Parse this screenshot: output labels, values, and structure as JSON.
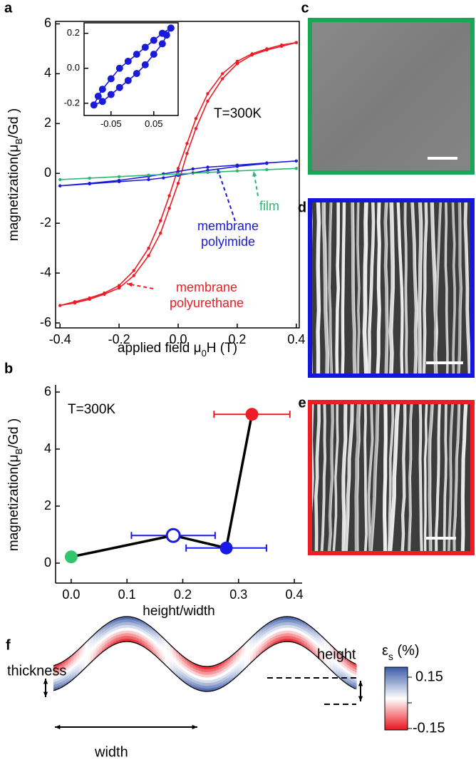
{
  "chart_data": [
    {
      "type": "line",
      "panel_label": "a",
      "xlabel": [
        {
          "text": "applied field μ"
        },
        {
          "text": "0",
          "sub": true
        },
        {
          "text": "H (T)"
        }
      ],
      "ylabel": [
        {
          "text": "magnetization(μ"
        },
        {
          "text": "B",
          "sub": true
        },
        {
          "text": "/Gd )"
        }
      ],
      "xlim": [
        -0.415,
        0.41
      ],
      "ylim": [
        -6.2,
        6.1
      ],
      "xticks": [
        -0.4,
        -0.2,
        {
          "value": 0,
          "label": "0.0"
        },
        0.2,
        0.4
      ],
      "yticks": [
        -6,
        -4,
        -2,
        0,
        2,
        4,
        6
      ],
      "annotations": [
        "T=300K"
      ],
      "series": [
        {
          "name": "membrane polyurethane",
          "color": "#ee1c24",
          "x": [
            0.4,
            0.35,
            0.3,
            0.25,
            0.2,
            0.15,
            0.1,
            0.06,
            0.03,
            0,
            -0.03,
            -0.06,
            -0.1,
            -0.15,
            -0.2,
            -0.25,
            -0.3,
            -0.35,
            -0.4,
            -0.35,
            -0.3,
            -0.25,
            -0.2,
            -0.15,
            -0.1,
            -0.06,
            -0.03,
            0,
            0.03,
            0.06,
            0.1,
            0.15,
            0.2,
            0.25,
            0.3,
            0.35,
            0.4
          ],
          "values": [
            5.25,
            5.15,
            5.0,
            4.8,
            4.5,
            4.0,
            3.2,
            2.2,
            1.2,
            0.2,
            -0.9,
            -1.9,
            -3.0,
            -3.9,
            -4.5,
            -4.8,
            -5.0,
            -5.15,
            -5.3,
            -5.2,
            -5.05,
            -4.85,
            -4.6,
            -4.1,
            -3.3,
            -2.4,
            -1.4,
            -0.4,
            0.8,
            1.8,
            2.9,
            3.8,
            4.4,
            4.75,
            4.95,
            5.1,
            5.25
          ]
        },
        {
          "name": "membrane polyimide",
          "color": "#1a1adb",
          "x": [
            0.4,
            0.3,
            0.2,
            0.1,
            0.05,
            0,
            -0.05,
            -0.1,
            -0.2,
            -0.3,
            -0.4,
            -0.3,
            -0.2,
            -0.1,
            -0.05,
            0,
            0.05,
            0.1,
            0.2,
            0.3
          ],
          "values": [
            0.5,
            0.42,
            0.33,
            0.25,
            0.18,
            0.08,
            -0.02,
            -0.12,
            -0.28,
            -0.4,
            -0.5,
            -0.42,
            -0.33,
            -0.25,
            -0.18,
            -0.08,
            0.02,
            0.12,
            0.28,
            0.4
          ]
        },
        {
          "name": "film",
          "color": "#2fb673",
          "x": [
            -0.4,
            -0.3,
            -0.2,
            -0.1,
            0,
            0.1,
            0.2,
            0.3,
            0.4
          ],
          "values": [
            -0.25,
            -0.19,
            -0.13,
            -0.07,
            -0.02,
            0.04,
            0.1,
            0.15,
            0.2
          ]
        }
      ]
    },
    {
      "type": "line",
      "inset": true,
      "xlim": [
        -0.113,
        0.107
      ],
      "ylim": [
        -0.27,
        0.26
      ],
      "xticks": [
        -0.05,
        0.05
      ],
      "yticks": [
        -0.2,
        {
          "value": 0,
          "label": "0.0"
        },
        0.2
      ],
      "series": [
        {
          "color": "#1a1adb",
          "x": [
            0.09,
            0.07,
            0.05,
            0.03,
            0.01,
            -0.01,
            -0.03,
            -0.05,
            -0.07,
            -0.08,
            -0.09,
            -0.07,
            -0.05,
            -0.03,
            -0.01,
            0.01,
            0.03,
            0.05,
            0.07,
            0.08,
            0.09
          ],
          "values": [
            0.23,
            0.2,
            0.16,
            0.12,
            0.08,
            0.04,
            0.0,
            -0.06,
            -0.12,
            -0.16,
            -0.21,
            -0.19,
            -0.15,
            -0.11,
            -0.07,
            -0.03,
            0.02,
            0.08,
            0.14,
            0.19,
            0.23
          ]
        }
      ]
    },
    {
      "type": "scatter",
      "panel_label": "b",
      "xlabel": [
        {
          "text": "height/width"
        }
      ],
      "ylabel": [
        {
          "text": "magnetization(μ"
        },
        {
          "text": "B",
          "sub": true
        },
        {
          "text": "/Gd )"
        }
      ],
      "xlim": [
        -0.028,
        0.414
      ],
      "ylim": [
        -0.7,
        6.25
      ],
      "xticks": [
        {
          "value": 0,
          "label": "0.0"
        },
        0.1,
        0.2,
        0.3,
        0.4
      ],
      "yticks": [
        0,
        2,
        4,
        6
      ],
      "annotations": [
        "T=300K"
      ],
      "x": [
        0,
        0.183,
        0.278,
        0.324
      ],
      "values": [
        0.22,
        0.97,
        0.53,
        5.22
      ],
      "xerr": [
        null,
        0.075,
        0.072,
        0.068
      ],
      "colors": [
        "#33c46f",
        "#1a1ae6",
        "#1a1ae6",
        "#ee1c24"
      ],
      "filled": [
        true,
        false,
        true,
        true
      ],
      "line_color": "#000000"
    }
  ],
  "images": [
    {
      "label": "c",
      "border": "#1aa657"
    },
    {
      "label": "d",
      "border": "#1515e0"
    },
    {
      "label": "e",
      "border": "#ee1c24"
    }
  ],
  "diagram": {
    "label": "f",
    "thickness": "thickness",
    "width": "width",
    "height": "height",
    "colorbar": {
      "title": [
        {
          "text": "ε"
        },
        {
          "text": "s",
          "sub": true
        },
        {
          "text": " (%)"
        }
      ],
      "max": "0.15",
      "min": "-0.15"
    }
  }
}
